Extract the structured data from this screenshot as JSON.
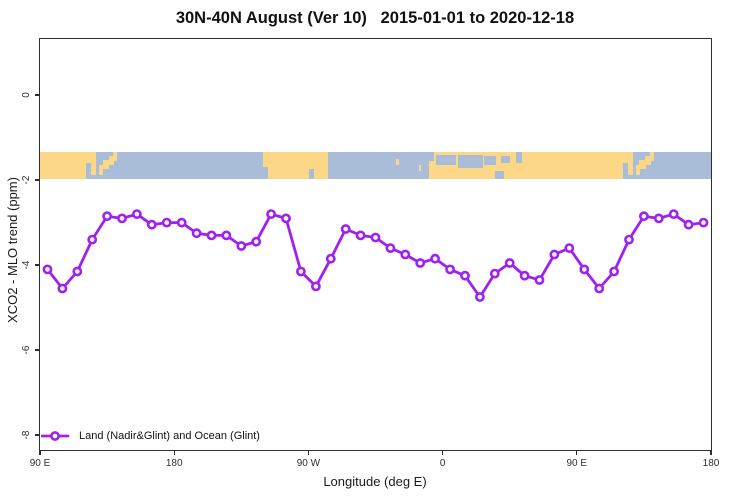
{
  "title": "30N-40N August (Ver 10)   2015-01-01 to 2020-12-18",
  "chart_data": {
    "type": "line",
    "title": "30N-40N August (Ver 10)   2015-01-01 to 2020-12-18",
    "xlabel": "Longitude (deg E)",
    "ylabel": "XCO2 - MLO trend (ppm)",
    "xlim": [
      90,
      540
    ],
    "ylim": [
      -8.35,
      1.32
    ],
    "grid": false,
    "marker": "open-circle",
    "legend_position": "bottom-left-inside",
    "x_ticks": [
      {
        "value": 90,
        "label": "90 E"
      },
      {
        "value": 180,
        "label": "180"
      },
      {
        "value": 270,
        "label": "90 W"
      },
      {
        "value": 360,
        "label": "0"
      },
      {
        "value": 450,
        "label": "90 E"
      },
      {
        "value": 540,
        "label": "180"
      }
    ],
    "y_ticks": [
      {
        "value": 0,
        "label": "0"
      },
      {
        "value": -2,
        "label": "-2"
      },
      {
        "value": -4,
        "label": "-4"
      },
      {
        "value": -6,
        "label": "-6"
      },
      {
        "value": -8,
        "label": "-8"
      }
    ],
    "legend": [
      {
        "label": "Land (Nadir&Glint) and Ocean (Glint)",
        "color": "#a020f0",
        "marker": "open-circle"
      }
    ],
    "series": [
      {
        "name": "Land (Nadir&Glint) and Ocean (Glint)",
        "color": "#a020f0",
        "x": [
          95,
          105,
          115,
          125,
          135,
          145,
          155,
          165,
          175,
          185,
          195,
          205,
          215,
          225,
          235,
          245,
          255,
          265,
          275,
          285,
          295,
          305,
          315,
          325,
          335,
          345,
          355,
          365,
          375,
          385,
          395,
          405,
          415,
          425,
          435,
          445,
          455,
          465,
          475,
          485,
          495,
          505,
          515,
          525,
          535
        ],
        "y": [
          -4.1,
          -4.55,
          -4.15,
          -3.4,
          -2.85,
          -2.9,
          -2.8,
          -3.05,
          -3.0,
          -3.0,
          -3.25,
          -3.3,
          -3.3,
          -3.55,
          -3.45,
          -2.8,
          -2.9,
          -4.15,
          -4.5,
          -3.85,
          -3.15,
          -3.3,
          -3.35,
          -3.6,
          -3.75,
          -3.95,
          -3.85,
          -4.1,
          -4.25,
          -4.75,
          -4.2,
          -3.95,
          -4.25,
          -4.35,
          -3.75,
          -3.6,
          -4.1,
          -4.55,
          -4.15,
          -3.4,
          -2.85,
          -2.9,
          -2.8,
          -3.05,
          -3.0
        ]
      }
    ]
  },
  "map_strip": {
    "description": "world land-ocean band 30N-40N drawn across plot",
    "top_value": -1.34,
    "bottom_value": -1.965,
    "land_color": "#fcd787",
    "ocean_color": "#a9bdd9",
    "land_rects": [
      [
        90,
        121,
        0,
        1
      ],
      [
        121,
        127.5,
        0,
        0.4
      ],
      [
        124.5,
        127.5,
        0.25,
        0.85
      ],
      [
        129.5,
        132.5,
        0.5,
        0.85
      ],
      [
        132,
        136.5,
        0.3,
        0.65
      ],
      [
        136,
        139.5,
        0.15,
        0.5
      ],
      [
        139,
        141.5,
        0,
        0.35
      ],
      [
        239.5,
        283,
        0,
        1
      ],
      [
        328.5,
        330.5,
        0.25,
        0.5
      ],
      [
        344,
        345.5,
        0.5,
        0.7
      ],
      [
        351,
        481,
        0,
        1
      ],
      [
        481,
        487.5,
        0,
        0.4
      ],
      [
        484.5,
        487.5,
        0.25,
        0.85
      ],
      [
        489.5,
        492.5,
        0.5,
        0.85
      ],
      [
        492,
        496.5,
        0.3,
        0.65
      ],
      [
        496,
        499.5,
        0.15,
        0.5
      ],
      [
        499,
        501.5,
        0,
        0.35
      ]
    ],
    "ocean_patches": [
      [
        239.5,
        243,
        0.55,
        1
      ],
      [
        270.5,
        273.5,
        0.65,
        1
      ],
      [
        351,
        354.5,
        0,
        0.35
      ],
      [
        355.5,
        369,
        0.1,
        0.5
      ],
      [
        370.5,
        387,
        0.1,
        0.6
      ],
      [
        388,
        396,
        0.15,
        0.5
      ],
      [
        395,
        401,
        0.7,
        1
      ],
      [
        399,
        405.5,
        0.15,
        0.4
      ],
      [
        409,
        413.5,
        0,
        0.4
      ]
    ]
  },
  "colors": {
    "line": "#a020f0",
    "box": "#2f2f2f",
    "tick_label": "#303030",
    "land": "#fcd787",
    "ocean": "#a9bdd9",
    "background": "#ffffff"
  }
}
